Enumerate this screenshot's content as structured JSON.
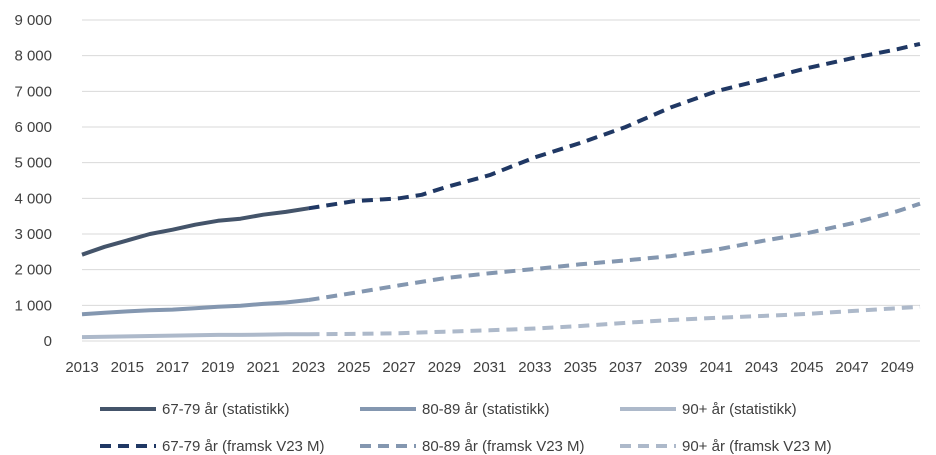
{
  "chart_data": {
    "type": "line",
    "title": "",
    "xlabel": "",
    "ylabel": "",
    "xlim": [
      2013,
      2050
    ],
    "ylim": [
      0,
      9000
    ],
    "y_ticks": [
      0,
      1000,
      2000,
      3000,
      4000,
      5000,
      6000,
      7000,
      8000,
      9000
    ],
    "y_tick_labels": [
      "0",
      "1 000",
      "2 000",
      "3 000",
      "4 000",
      "5 000",
      "6 000",
      "7 000",
      "8 000",
      "9 000"
    ],
    "x_ticks": [
      2013,
      2015,
      2017,
      2019,
      2021,
      2023,
      2025,
      2027,
      2029,
      2031,
      2033,
      2035,
      2037,
      2039,
      2041,
      2043,
      2045,
      2047,
      2049
    ],
    "x_tick_labels": [
      "2013",
      "2015",
      "2017",
      "2019",
      "2021",
      "2023",
      "2025",
      "2027",
      "2029",
      "2031",
      "2033",
      "2035",
      "2037",
      "2039",
      "2041",
      "2043",
      "2045",
      "2047",
      "2049"
    ],
    "grid": "horizontal",
    "legend_position": "bottom",
    "series": [
      {
        "name": "67-79 år (statistikk)",
        "style": "solid",
        "color": "#44546a",
        "x": [
          2013,
          2014,
          2015,
          2016,
          2017,
          2018,
          2019,
          2020,
          2021,
          2022,
          2023
        ],
        "y": [
          2420,
          2640,
          2820,
          3000,
          3120,
          3260,
          3370,
          3430,
          3540,
          3620,
          3720
        ]
      },
      {
        "name": "80-89 år (statistikk)",
        "style": "solid",
        "color": "#8497b0",
        "x": [
          2013,
          2014,
          2015,
          2016,
          2017,
          2018,
          2019,
          2020,
          2021,
          2022,
          2023
        ],
        "y": [
          750,
          790,
          830,
          860,
          880,
          920,
          960,
          990,
          1040,
          1080,
          1150
        ]
      },
      {
        "name": "90+ år (statistikk)",
        "style": "solid",
        "color": "#adb9ca",
        "x": [
          2013,
          2014,
          2015,
          2016,
          2017,
          2018,
          2019,
          2020,
          2021,
          2022,
          2023
        ],
        "y": [
          110,
          120,
          130,
          140,
          150,
          160,
          170,
          170,
          180,
          190,
          190
        ]
      },
      {
        "name": "67-79 år (framsk V23 M)",
        "style": "dashed",
        "color": "#203864",
        "x": [
          2023,
          2025,
          2027,
          2028,
          2029,
          2031,
          2033,
          2035,
          2037,
          2039,
          2041,
          2043,
          2045,
          2047,
          2049,
          2050
        ],
        "y": [
          3720,
          3920,
          4000,
          4100,
          4300,
          4650,
          5150,
          5550,
          6000,
          6550,
          7000,
          7320,
          7650,
          7930,
          8180,
          8330
        ]
      },
      {
        "name": "80-89 år (framsk V23 M)",
        "style": "dashed",
        "color": "#8497b0",
        "x": [
          2023,
          2025,
          2027,
          2029,
          2031,
          2033,
          2035,
          2037,
          2039,
          2041,
          2043,
          2045,
          2047,
          2049,
          2050
        ],
        "y": [
          1150,
          1350,
          1560,
          1760,
          1900,
          2020,
          2150,
          2260,
          2380,
          2560,
          2800,
          3020,
          3300,
          3640,
          3850
        ]
      },
      {
        "name": "90+ år (framsk V23 M)",
        "style": "dashed",
        "color": "#adb9ca",
        "x": [
          2023,
          2025,
          2027,
          2029,
          2031,
          2033,
          2035,
          2037,
          2039,
          2041,
          2043,
          2045,
          2047,
          2049,
          2050
        ],
        "y": [
          190,
          200,
          220,
          260,
          300,
          350,
          420,
          510,
          590,
          650,
          700,
          760,
          840,
          920,
          960
        ]
      }
    ]
  }
}
